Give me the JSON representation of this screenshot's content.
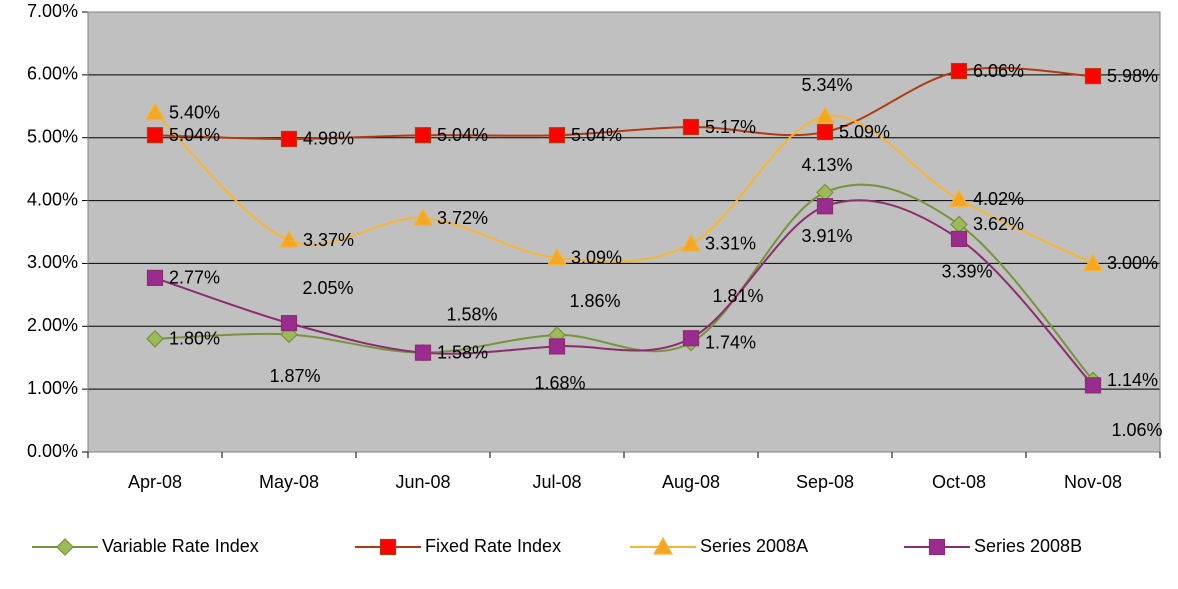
{
  "chart_data": {
    "type": "line",
    "categories": [
      "Apr-08",
      "May-08",
      "Jun-08",
      "Jul-08",
      "Aug-08",
      "Sep-08",
      "Oct-08",
      "Nov-08"
    ],
    "ylim": [
      0,
      7
    ],
    "yticks": [
      {
        "value": 0,
        "label": "0.00%"
      },
      {
        "value": 1,
        "label": "1.00%"
      },
      {
        "value": 2,
        "label": "2.00%"
      },
      {
        "value": 3,
        "label": "3.00%"
      },
      {
        "value": 4,
        "label": "4.00%"
      },
      {
        "value": 5,
        "label": "5.00%"
      },
      {
        "value": 6,
        "label": "6.00%"
      },
      {
        "value": 7,
        "label": "7.00%"
      }
    ],
    "grid": true,
    "legend": "bottom",
    "series": [
      {
        "name": "Variable Rate Index",
        "color": "#77933c",
        "marker": "diamond",
        "marker_color": "#9bbb59",
        "values": [
          1.8,
          1.87,
          1.58,
          1.86,
          1.74,
          4.13,
          3.62,
          1.14
        ],
        "value_labels": [
          "1.80%",
          "1.87%",
          "1.58%",
          "1.86%",
          "1.74%",
          "4.13%",
          "3.62%",
          "1.14%"
        ]
      },
      {
        "name": "Fixed Rate Index",
        "color": "#b03a10",
        "marker": "square",
        "marker_color": "#ff0000",
        "values": [
          5.04,
          4.98,
          5.04,
          5.04,
          5.17,
          5.09,
          6.06,
          5.98
        ],
        "value_labels": [
          "5.04%",
          "4.98%",
          "5.04%",
          "5.04%",
          "5.17%",
          "5.09%",
          "6.06%",
          "5.98%"
        ]
      },
      {
        "name": "Series 2008A",
        "color": "#f5b533",
        "marker": "triangle",
        "marker_color": "#f5a623",
        "values": [
          5.4,
          3.37,
          3.72,
          3.09,
          3.31,
          5.34,
          4.02,
          3.0
        ],
        "value_labels": [
          "5.40%",
          "3.37%",
          "3.72%",
          "3.09%",
          "3.31%",
          "5.34%",
          "4.02%",
          "3.00%"
        ]
      },
      {
        "name": "Series 2008B",
        "color": "#8b2c6e",
        "marker": "square",
        "marker_color": "#9a2c8f",
        "values": [
          2.77,
          2.05,
          1.58,
          1.68,
          1.81,
          3.91,
          3.39,
          1.06
        ],
        "value_labels": [
          "2.77%",
          "2.05%",
          "1.58%",
          "1.68%",
          "1.81%",
          "3.91%",
          "3.39%",
          "1.06%"
        ]
      }
    ]
  }
}
